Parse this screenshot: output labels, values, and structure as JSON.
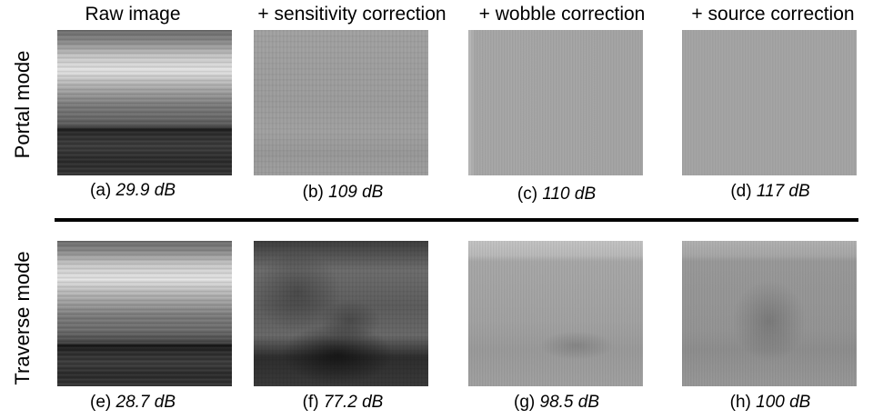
{
  "columns": [
    "Raw image",
    "+ sensitivity correction",
    "+ wobble correction",
    "+ source correction"
  ],
  "rows": [
    {
      "label": "Portal mode",
      "captions": [
        {
          "tag": "(a)",
          "value": "29.9 dB"
        },
        {
          "tag": "(b)",
          "value": "109 dB"
        },
        {
          "tag": "(c)",
          "value": "110 dB"
        },
        {
          "tag": "(d)",
          "value": "117 dB"
        }
      ]
    },
    {
      "label": "Traverse mode",
      "captions": [
        {
          "tag": "(e)",
          "value": "28.7 dB"
        },
        {
          "tag": "(f)",
          "value": "77.2 dB"
        },
        {
          "tag": "(g)",
          "value": "98.5 dB"
        },
        {
          "tag": "(h)",
          "value": "100 dB"
        }
      ]
    }
  ]
}
